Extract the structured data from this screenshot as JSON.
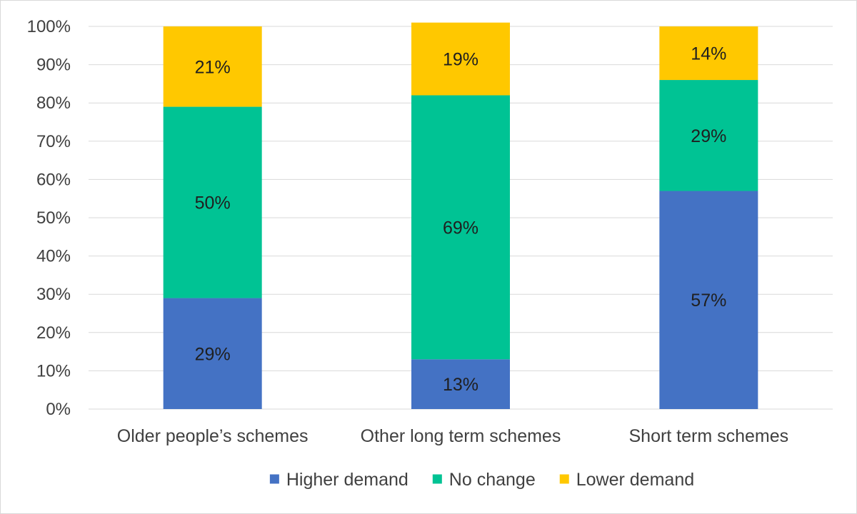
{
  "chart_data": {
    "type": "bar",
    "stacked": true,
    "categories": [
      "Older people’s schemes",
      "Other long term schemes",
      "Short term schemes"
    ],
    "series": [
      {
        "name": "Higher demand",
        "values": [
          29,
          13,
          57
        ],
        "labels": [
          "29%",
          "13%",
          "57%"
        ],
        "color": "#4472C4"
      },
      {
        "name": "No change",
        "values": [
          50,
          69,
          29
        ],
        "labels": [
          "50%",
          "69%",
          "29%"
        ],
        "color": "#00C394"
      },
      {
        "name": "Lower demand",
        "values": [
          21,
          19,
          14
        ],
        "labels": [
          "21%",
          "19%",
          "14%"
        ],
        "color": "#FFC800"
      }
    ],
    "ylim": [
      0,
      100
    ],
    "y_ticks": [
      "0%",
      "10%",
      "20%",
      "30%",
      "40%",
      "50%",
      "60%",
      "70%",
      "80%",
      "90%",
      "100%"
    ],
    "grid": true,
    "legend": "bottom"
  }
}
